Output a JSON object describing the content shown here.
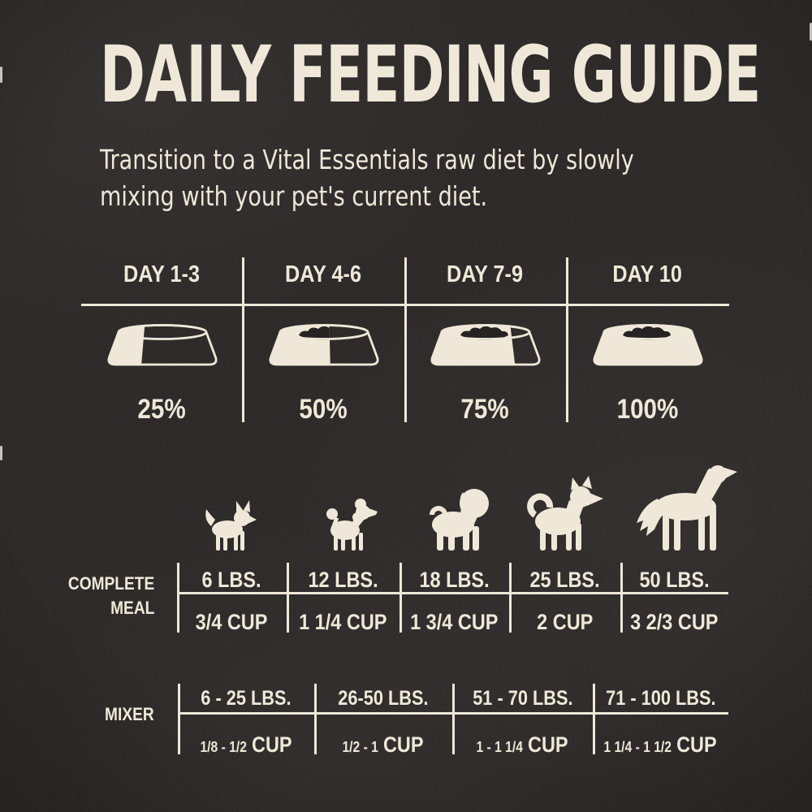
{
  "header": {
    "title": "DAILY FEEDING GUIDE",
    "subtitle_line1": "Transition to a Vital Essentials raw diet by slowly",
    "subtitle_line2": "mixing with your pet's current diet."
  },
  "colors": {
    "background": "#292625",
    "ink": "#EFE8D8"
  },
  "transition": {
    "columns": [
      {
        "day": "DAY 1-3",
        "percent": "25%",
        "bowl_fill": 0.3,
        "bowl_icon": "dog-bowl-quarter-full-icon"
      },
      {
        "day": "DAY 4-6",
        "percent": "50%",
        "bowl_fill": 0.56,
        "bowl_icon": "dog-bowl-half-full-icon"
      },
      {
        "day": "DAY 7-9",
        "percent": "75%",
        "bowl_fill": 0.78,
        "bowl_icon": "dog-bowl-three-quarter-full-icon"
      },
      {
        "day": "DAY 10",
        "percent": "100%",
        "bowl_fill": 1,
        "bowl_icon": "dog-bowl-full-icon"
      }
    ]
  },
  "dogs": [
    {
      "icon": "chihuahua-icon"
    },
    {
      "icon": "poodle-icon"
    },
    {
      "icon": "pug-icon"
    },
    {
      "icon": "shiba-icon"
    },
    {
      "icon": "large-dog-icon"
    }
  ],
  "complete_meal": {
    "label_lines": [
      "COMPLETE",
      "MEAL"
    ],
    "columns": [
      {
        "weight": "6 LBS.",
        "cup": "3/4 CUP"
      },
      {
        "weight": "12 LBS.",
        "cup": "1 1/4 CUP"
      },
      {
        "weight": "18 LBS.",
        "cup": "1 3/4 CUP"
      },
      {
        "weight": "25 LBS.",
        "cup": "2 CUP"
      },
      {
        "weight": "50 LBS.",
        "cup": "3 2/3 CUP"
      }
    ]
  },
  "mixer": {
    "label": "MIXER",
    "columns": [
      {
        "weight": "6 - 25 LBS.",
        "cup_range": "1/8 - 1/2",
        "cup_unit": "CUP"
      },
      {
        "weight": "26-50 LBS.",
        "cup_range": "1/2 - 1",
        "cup_unit": "CUP"
      },
      {
        "weight": "51 - 70 LBS.",
        "cup_range": "1 - 1 1/4",
        "cup_unit": "CUP"
      },
      {
        "weight": "71 - 100 LBS.",
        "cup_range": "1 1/4 - 1 1/2",
        "cup_unit": "CUP"
      }
    ]
  }
}
